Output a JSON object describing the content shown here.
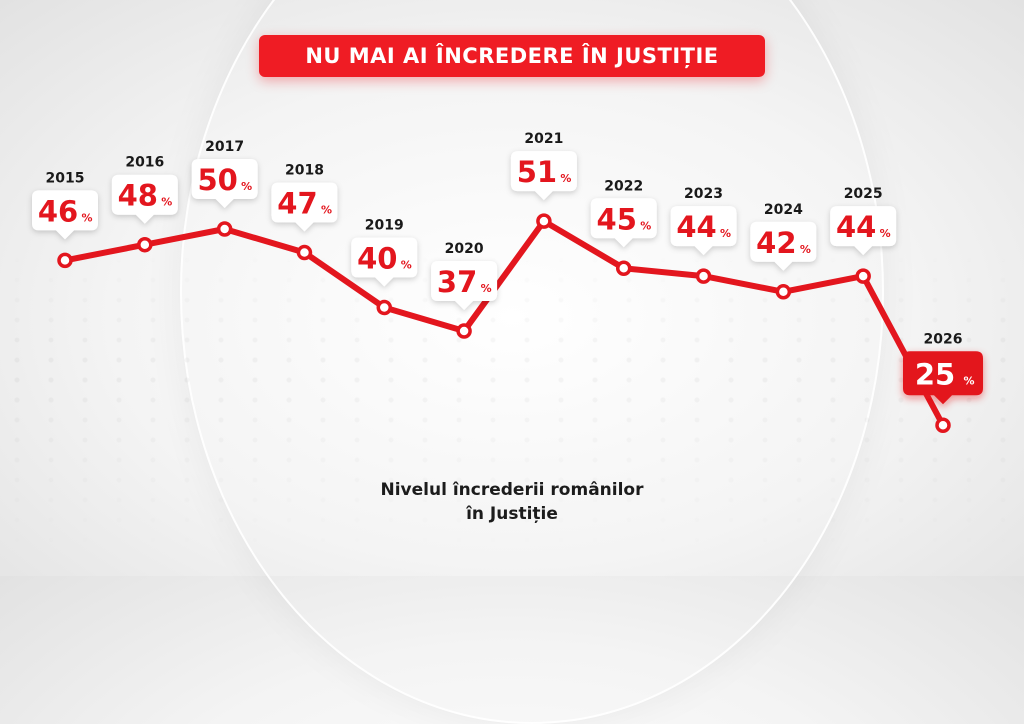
{
  "title": "NU MAI AI ÎNCREDERE ÎN JUSTIȚIE",
  "caption": {
    "line1": "Nivelul încrederii românilor",
    "line2": "în Justiție"
  },
  "colors": {
    "accent": "#ef1c24",
    "line": "#e3161e",
    "text": "#1a1a1a"
  },
  "chart_data": {
    "type": "line",
    "title": "NU MAI AI ÎNCREDERE ÎN JUSTIȚIE",
    "subtitle": "Nivelul încrederii românilor în Justiție",
    "x": [
      "2015",
      "2016",
      "2017",
      "2018",
      "2019",
      "2020",
      "2021",
      "2022",
      "2023",
      "2024",
      "2025",
      "2026"
    ],
    "series": [
      {
        "values": [
          46,
          48,
          50,
          47,
          40,
          37,
          51,
          45,
          44,
          42,
          44,
          25
        ],
        "labels": [
          "46",
          "48",
          "50",
          "47",
          "40",
          "37",
          "51",
          "45",
          "44",
          "42",
          "44",
          "25"
        ],
        "unit": "%"
      }
    ],
    "highlight": "2026",
    "grid": false,
    "legend": "none"
  }
}
